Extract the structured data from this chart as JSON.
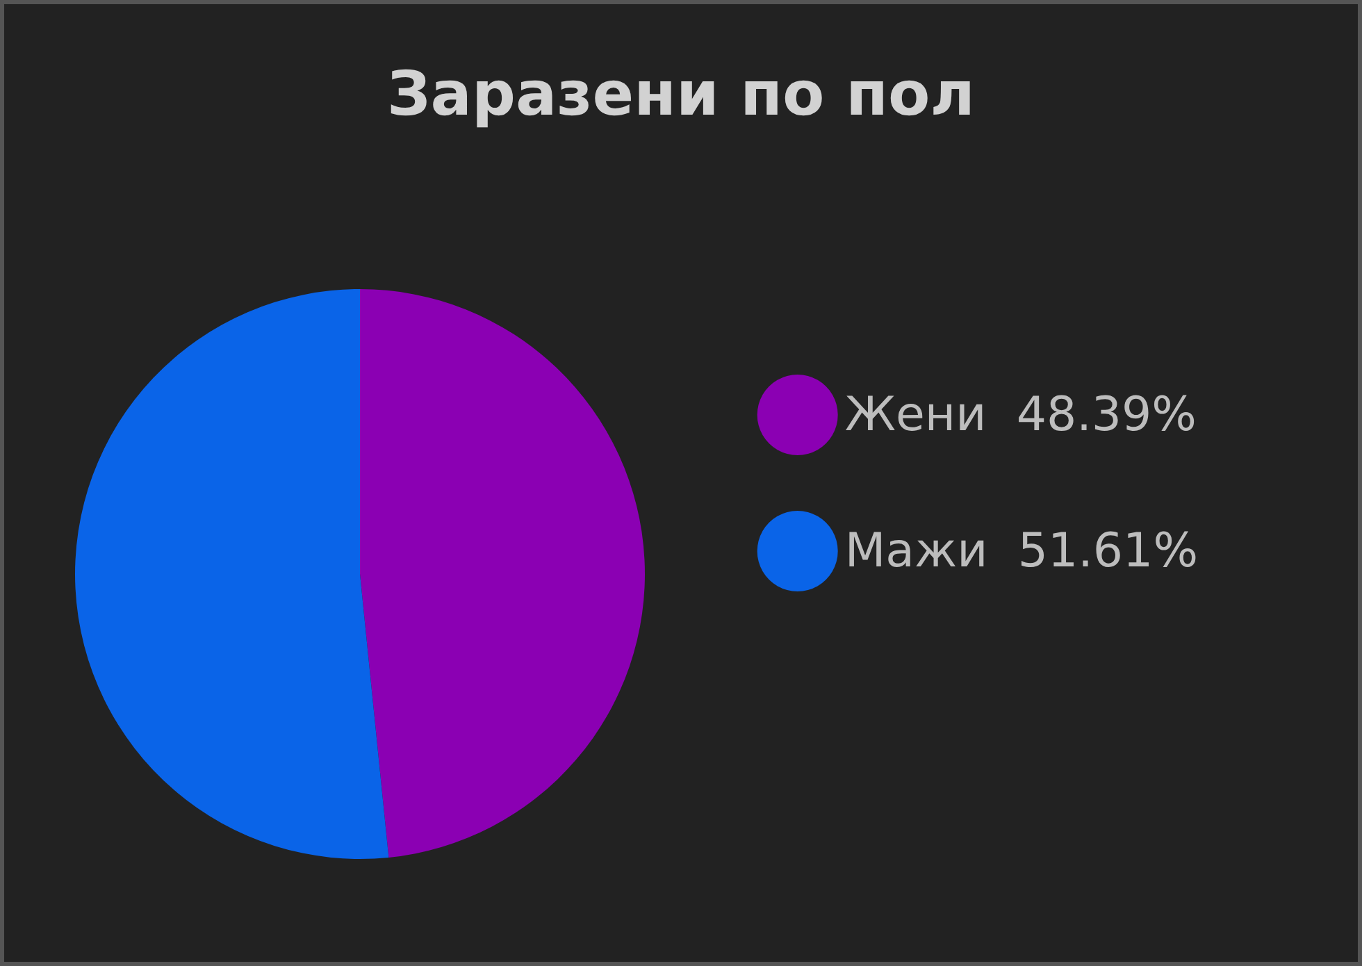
{
  "chart_data": {
    "type": "pie",
    "title": "Заразени по пол",
    "categories": [
      "Жени",
      "Мажи"
    ],
    "values": [
      48.39,
      51.61
    ],
    "colors": [
      "#8b00b3",
      "#0a64e8"
    ],
    "value_labels": [
      "48.39%",
      "51.61%"
    ],
    "legend": "right"
  }
}
